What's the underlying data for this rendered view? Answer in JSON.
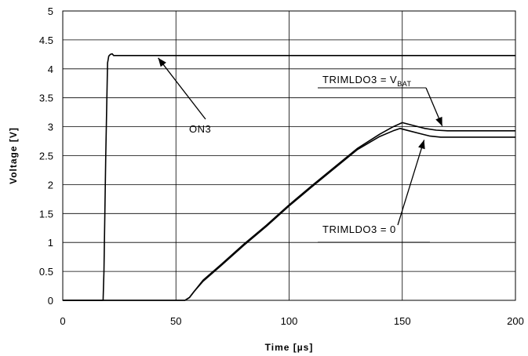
{
  "chart_data": {
    "type": "line",
    "xlabel": "Time [µs]",
    "ylabel": "Voltage [V]",
    "xlim": [
      0,
      200
    ],
    "ylim": [
      0,
      5
    ],
    "xticks": [
      0,
      50,
      100,
      150,
      200
    ],
    "xtick_labels": [
      "0",
      "50",
      "100",
      "150",
      "200"
    ],
    "yticks": [
      0,
      0.5,
      1,
      1.5,
      2,
      2.5,
      3,
      3.5,
      4,
      4.5,
      5
    ],
    "ytick_labels": [
      "0",
      "0.5",
      "1",
      "1.5",
      "2",
      "2.5",
      "3",
      "3.5",
      "4",
      "4.5",
      "5"
    ],
    "vertical_grid": true,
    "horizontal_grid": true,
    "legend": "none",
    "series": [
      {
        "name": "ON3",
        "x": [
          0,
          17.8,
          18.2,
          19,
          19.8,
          20.3,
          21,
          21.8,
          22.5,
          200
        ],
        "y": [
          0,
          0,
          0.5,
          2.5,
          4.1,
          4.22,
          4.25,
          4.26,
          4.23,
          4.23
        ]
      },
      {
        "name": "TRIMLDO3 = VBAT",
        "x": [
          0,
          54,
          56,
          58,
          62,
          70,
          80,
          90,
          100,
          110,
          120,
          130,
          140,
          146,
          150,
          155,
          160,
          165,
          170,
          200
        ],
        "y": [
          0,
          0,
          0.05,
          0.15,
          0.35,
          0.62,
          0.97,
          1.3,
          1.65,
          1.98,
          2.3,
          2.62,
          2.87,
          3.0,
          3.07,
          3.02,
          2.97,
          2.94,
          2.93,
          2.93
        ]
      },
      {
        "name": "TRIMLDO3 = 0",
        "x": [
          0,
          54,
          56,
          58,
          62,
          70,
          80,
          90,
          100,
          110,
          120,
          130,
          140,
          146,
          149,
          153,
          158,
          162,
          167,
          200
        ],
        "y": [
          0,
          0,
          0.05,
          0.15,
          0.33,
          0.6,
          0.95,
          1.28,
          1.63,
          1.96,
          2.28,
          2.6,
          2.83,
          2.93,
          2.97,
          2.93,
          2.88,
          2.84,
          2.82,
          2.82
        ]
      }
    ],
    "annotations": [
      {
        "text": "ON3",
        "points_to": [
          47,
          4.23
        ]
      },
      {
        "text": "TRIMLDO3 = V",
        "subscript": "BAT",
        "points_to": [
          168,
          2.93
        ]
      },
      {
        "text": "TRIMLDO3 = 0",
        "points_to": [
          160,
          2.84
        ]
      }
    ]
  }
}
